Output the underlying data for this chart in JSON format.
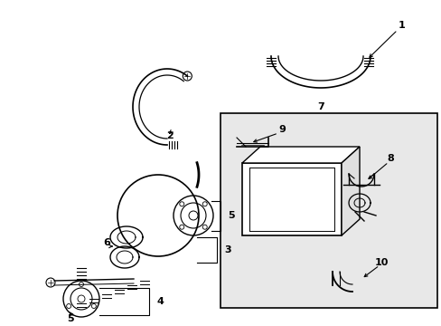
{
  "bg_color": "#ffffff",
  "box_bg": "#e8e8e8",
  "lc": "#000000",
  "font_size": 8,
  "fig_w": 4.89,
  "fig_h": 3.6,
  "dpi": 100
}
